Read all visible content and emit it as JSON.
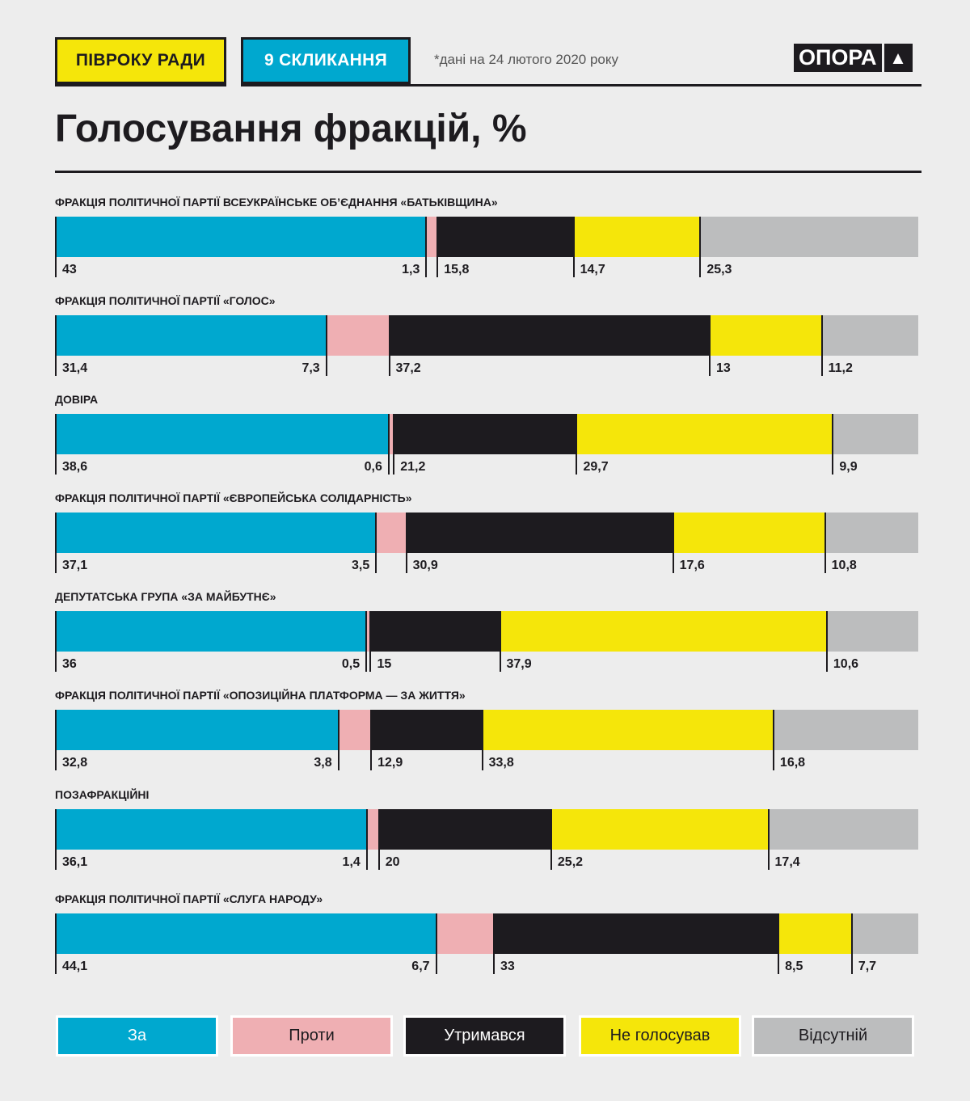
{
  "header": {
    "tag1": "ПІВРОКУ РАДИ",
    "tag2": "9 СКЛИКАННЯ",
    "note": "*дані на 24 лютого 2020 року",
    "logo": "ОПОРА",
    "logo_icon": "triangle-icon"
  },
  "colors": {
    "za": "#00a8cf",
    "proty": "#efafb3",
    "utrymavsia": "#1d1b1f",
    "ne_holosuvav": "#f5e60a",
    "vidsutnii": "#bcbdbe"
  },
  "chart_data": {
    "type": "bar",
    "stacked": true,
    "orientation": "horizontal",
    "title": "Голосування фракцій, %",
    "legend": [
      "За",
      "Проти",
      "Утримався",
      "Не голосував",
      "Відсутній"
    ],
    "legend_placement": "bottom",
    "categories": [
      "ФРАКЦІЯ ПОЛІТИЧНОЇ ПАРТІЇ ВСЕУКРАЇНСЬКЕ ОБ’ЄДНАННЯ «БАТЬКІВЩИНА»",
      "ФРАКЦІЯ ПОЛІТИЧНОЇ ПАРТІЇ «ГОЛОС»",
      "ДОВІРА",
      "ФРАКЦІЯ ПОЛІТИЧНОЇ ПАРТІЇ «ЄВРОПЕЙСЬКА СОЛІДАРНІСТЬ»",
      "ДЕПУТАТСЬКА ГРУПА «ЗА МАЙБУТНЄ»",
      "ФРАКЦІЯ ПОЛІТИЧНОЇ ПАРТІЇ «ОПОЗИЦІЙНА ПЛАТФОРМА — ЗА ЖИТТЯ»",
      "ПОЗАФРАКЦІЙНІ",
      "ФРАКЦІЯ ПОЛІТИЧНОЇ ПАРТІЇ «СЛУГА НАРОДУ»"
    ],
    "series": [
      {
        "name": "За",
        "values": [
          43,
          31.4,
          38.6,
          37.1,
          36,
          32.8,
          36.1,
          44.1
        ]
      },
      {
        "name": "Проти",
        "values": [
          1.3,
          7.3,
          0.6,
          3.5,
          0.5,
          3.8,
          1.4,
          6.7
        ]
      },
      {
        "name": "Утримався",
        "values": [
          15.8,
          37.2,
          21.2,
          30.9,
          15,
          12.9,
          20,
          33
        ]
      },
      {
        "name": "Не голосував",
        "values": [
          14.7,
          13,
          29.7,
          17.6,
          37.9,
          33.8,
          25.2,
          8.5
        ]
      },
      {
        "name": "Відсутній",
        "values": [
          25.3,
          11.2,
          9.9,
          10.8,
          10.6,
          16.8,
          17.4,
          7.7
        ]
      }
    ],
    "labels": [
      [
        "43",
        "1,3",
        "15,8",
        "14,7",
        "25,3"
      ],
      [
        "31,4",
        "7,3",
        "37,2",
        "13",
        "11,2"
      ],
      [
        "38,6",
        "0,6",
        "21,2",
        "29,7",
        "9,9"
      ],
      [
        "37,1",
        "3,5",
        "30,9",
        "17,6",
        "10,8"
      ],
      [
        "36",
        "0,5",
        "15",
        "37,9",
        "10,6"
      ],
      [
        "32,8",
        "3,8",
        "12,9",
        "33,8",
        "16,8"
      ],
      [
        "36,1",
        "1,4",
        "20",
        "25,2",
        "17,4"
      ],
      [
        "44,1",
        "6,7",
        "33",
        "8,5",
        "7,7"
      ]
    ]
  }
}
